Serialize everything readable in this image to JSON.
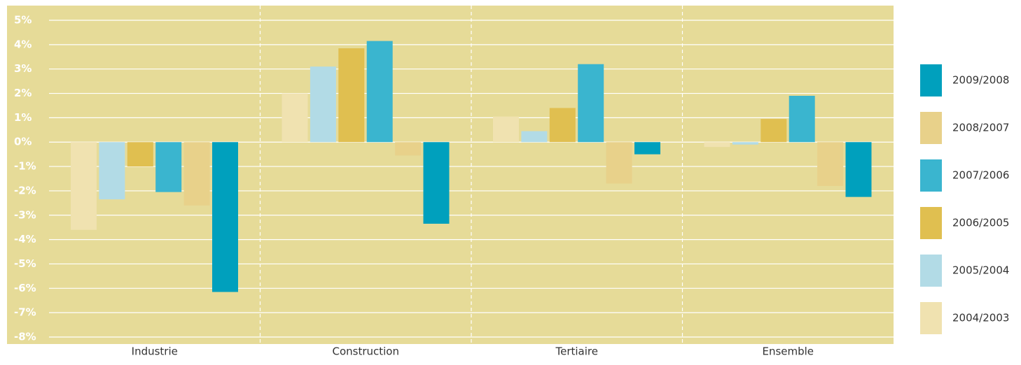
{
  "chart_data": {
    "type": "bar",
    "categories": [
      "Industrie",
      "Construction",
      "Tertiaire",
      "Ensemble"
    ],
    "series": [
      {
        "name": "2004/2003",
        "color": "#f0e2b0",
        "values": [
          -3.6,
          2.0,
          1.05,
          -0.2
        ]
      },
      {
        "name": "2005/2004",
        "color": "#b2dbe6",
        "values": [
          -2.35,
          3.1,
          0.45,
          -0.1
        ]
      },
      {
        "name": "2006/2005",
        "color": "#e0bf50",
        "values": [
          -1.0,
          3.85,
          1.4,
          0.95
        ]
      },
      {
        "name": "2007/2006",
        "color": "#3ab5cf",
        "values": [
          -2.05,
          4.15,
          3.2,
          1.9
        ]
      },
      {
        "name": "2008/2007",
        "color": "#e8d18a",
        "values": [
          -2.6,
          -0.55,
          -1.7,
          -1.8
        ]
      },
      {
        "name": "2009/2008",
        "color": "#00a0bd",
        "values": [
          -6.15,
          -3.35,
          -0.5,
          -2.25
        ]
      }
    ],
    "ylim": [
      -8,
      5
    ],
    "yticks": [
      {
        "value": 5,
        "label": "5%"
      },
      {
        "value": 4,
        "label": "4%"
      },
      {
        "value": 3,
        "label": "3%"
      },
      {
        "value": 2,
        "label": "2%"
      },
      {
        "value": 1,
        "label": "1%"
      },
      {
        "value": 0,
        "label": "0%"
      },
      {
        "value": -1,
        "label": "-1%"
      },
      {
        "value": -2,
        "label": "-2%"
      },
      {
        "value": -3,
        "label": "-3%"
      },
      {
        "value": -4,
        "label": "-4%"
      },
      {
        "value": -5,
        "label": "-5%"
      },
      {
        "value": -6,
        "label": "-6%"
      },
      {
        "value": -7,
        "label": "-7%"
      },
      {
        "value": -8,
        "label": "-8%"
      }
    ],
    "grid": true
  }
}
